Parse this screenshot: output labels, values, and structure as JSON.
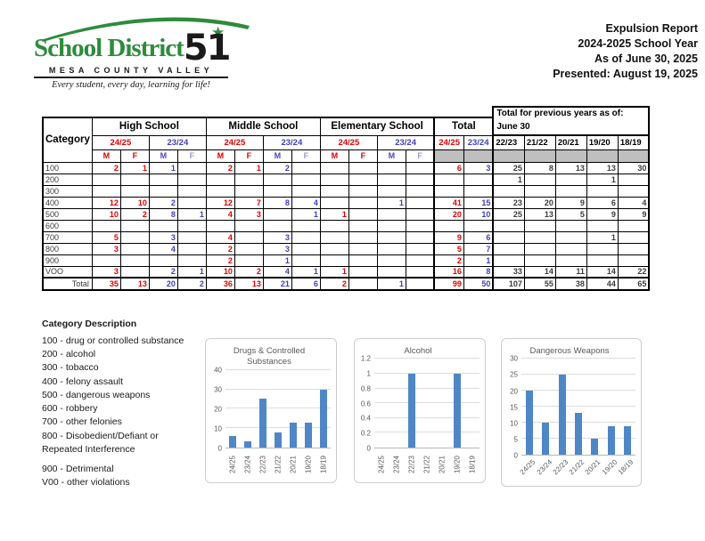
{
  "logo": {
    "district_name": "School District",
    "district_number": "51",
    "subtitle": "MESA COUNTY VALLEY",
    "tagline": "Every student, every day, learning for life!"
  },
  "report": {
    "line1": "Expulsion Report",
    "line2": "2024-2025 School Year",
    "line3": "As of June 30, 2025",
    "line4": "Presented: August 19, 2025"
  },
  "table": {
    "category_header": "Category",
    "sections": [
      "High School",
      "Middle School",
      "Elementary School",
      "Total"
    ],
    "prev_header_line1": "Total for previous years as of:",
    "prev_header_line2": "June 30",
    "year_current": "24/25",
    "year_prior": "23/24",
    "prev_years": [
      "22/23",
      "21/22",
      "20/21",
      "19/20",
      "18/19"
    ],
    "mf": [
      "M",
      "F"
    ],
    "rows": [
      {
        "label": "100",
        "cells": [
          "2",
          "1",
          "1",
          "",
          "2",
          "1",
          "2",
          "",
          "",
          "",
          "",
          "",
          "6",
          "3",
          "25",
          "8",
          "13",
          "13",
          "30"
        ]
      },
      {
        "label": "200",
        "cells": [
          "",
          "",
          "",
          "",
          "",
          "",
          "",
          "",
          "",
          "",
          "",
          "",
          "",
          "",
          "1",
          "",
          "",
          "1",
          ""
        ]
      },
      {
        "label": "300",
        "cells": [
          "",
          "",
          "",
          "",
          "",
          "",
          "",
          "",
          "",
          "",
          "",
          "",
          "",
          "",
          "",
          "",
          "",
          "",
          ""
        ]
      },
      {
        "label": "400",
        "cells": [
          "12",
          "10",
          "2",
          "",
          "12",
          "7",
          "8",
          "4",
          "",
          "",
          "1",
          "",
          "41",
          "15",
          "23",
          "20",
          "9",
          "6",
          "4"
        ]
      },
      {
        "label": "500",
        "cells": [
          "10",
          "2",
          "8",
          "1",
          "4",
          "3",
          "",
          "1",
          "1",
          "",
          "",
          "",
          "20",
          "10",
          "25",
          "13",
          "5",
          "9",
          "9"
        ]
      },
      {
        "label": "600",
        "cells": [
          "",
          "",
          "",
          "",
          "",
          "",
          "",
          "",
          "",
          "",
          "",
          "",
          "",
          "",
          "",
          "",
          "",
          "",
          ""
        ]
      },
      {
        "label": "700",
        "cells": [
          "5",
          "",
          "3",
          "",
          "4",
          "",
          "3",
          "",
          "",
          "",
          "",
          "",
          "9",
          "6",
          "",
          "",
          "",
          "1",
          ""
        ]
      },
      {
        "label": "800",
        "cells": [
          "3",
          "",
          "4",
          "",
          "2",
          "",
          "3",
          "",
          "",
          "",
          "",
          "",
          "5",
          "7",
          "",
          "",
          "",
          "",
          ""
        ]
      },
      {
        "label": "900",
        "cells": [
          "",
          "",
          "",
          "",
          "2",
          "",
          "1",
          "",
          "",
          "",
          "",
          "",
          "2",
          "1",
          "",
          "",
          "",
          "",
          ""
        ]
      },
      {
        "label": "VOO",
        "cells": [
          "3",
          "",
          "2",
          "1",
          "10",
          "2",
          "4",
          "1",
          "1",
          "",
          "",
          "",
          "16",
          "8",
          "33",
          "14",
          "11",
          "14",
          "22"
        ]
      }
    ],
    "total_row": {
      "label": "Total",
      "cells": [
        "35",
        "13",
        "20",
        "2",
        "36",
        "13",
        "21",
        "6",
        "2",
        "",
        "1",
        "",
        "99",
        "50",
        "107",
        "55",
        "38",
        "44",
        "65"
      ]
    }
  },
  "category_description": {
    "title": "Category Description",
    "items": [
      "100 - drug or controlled substance",
      "200 - alcohol",
      "300 - tobacco",
      "400 - felony assault",
      "500 - dangerous weapons",
      "600 - robbery",
      "700 - other felonies",
      "800 - Disobedient/Defiant or Repeated Interference",
      "900 - Detrimental",
      "V00 - other violations"
    ]
  },
  "chart_data": [
    {
      "type": "bar",
      "title": "Drugs & Controlled Substances",
      "categories": [
        "24/25",
        "23/24",
        "22/23",
        "21/22",
        "20/21",
        "19/20",
        "18/19"
      ],
      "values": [
        6,
        3,
        25,
        8,
        13,
        13,
        30
      ],
      "ylim": [
        0,
        40
      ],
      "ytick": 10,
      "xlabel": "",
      "ylabel": "",
      "grid": true,
      "legend": "none",
      "bar_color": "#4f86c6",
      "label_rotation": 90
    },
    {
      "type": "bar",
      "title": "Alcohol",
      "categories": [
        "24/25",
        "23/24",
        "22/23",
        "21/22",
        "20/21",
        "19/20",
        "18/19"
      ],
      "values": [
        0,
        0,
        1,
        0,
        0,
        1,
        0
      ],
      "ylim": [
        0,
        1.2
      ],
      "ytick": 0.2,
      "xlabel": "",
      "ylabel": "",
      "grid": true,
      "legend": "none",
      "bar_color": "#4f86c6",
      "label_rotation": 90
    },
    {
      "type": "bar",
      "title": "Dangerous Weapons",
      "categories": [
        "24/25",
        "23/24",
        "22/23",
        "21/22",
        "20/21",
        "19/20",
        "18/19"
      ],
      "values": [
        20,
        10,
        25,
        13,
        5,
        9,
        9
      ],
      "ylim": [
        0,
        30
      ],
      "ytick": 5,
      "xlabel": "",
      "ylabel": "",
      "grid": true,
      "legend": "none",
      "bar_color": "#4f86c6",
      "label_rotation": 45
    }
  ]
}
